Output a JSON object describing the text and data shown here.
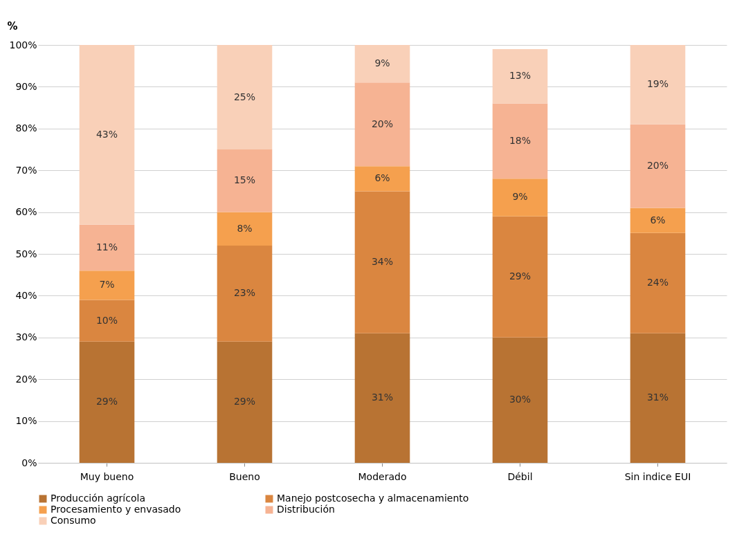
{
  "chart_data": {
    "type": "bar",
    "stacked": true,
    "ylabel": "%",
    "categories": [
      "Muy bueno",
      "Bueno",
      "Moderado",
      "Débil",
      "Sin indice EUI"
    ],
    "series": [
      {
        "name": "Producción agrícola",
        "color": "#b87333",
        "values": [
          29,
          29,
          31,
          30,
          31
        ],
        "value_labels": [
          "29%",
          "29%",
          "31%",
          "30%",
          "31%"
        ]
      },
      {
        "name": "Manejo postcosecha y almacenamiento",
        "color": "#da8640",
        "values": [
          10,
          23,
          34,
          29,
          24
        ],
        "value_labels": [
          "10%",
          "23%",
          "34%",
          "29%",
          "24%"
        ]
      },
      {
        "name": "Procesamiento y envasado",
        "color": "#f5a04e",
        "values": [
          7,
          8,
          6,
          9,
          6
        ],
        "value_labels": [
          "7%",
          "8%",
          "6%",
          "9%",
          "6%"
        ]
      },
      {
        "name": "Distribución",
        "color": "#f6b393",
        "values": [
          11,
          15,
          20,
          18,
          20
        ],
        "value_labels": [
          "11%",
          "15%",
          "20%",
          "18%",
          "20%"
        ]
      },
      {
        "name": "Consumo",
        "color": "#f9d0b8",
        "values": [
          43,
          25,
          9,
          13,
          19
        ],
        "value_labels": [
          "43%",
          "25%",
          "9%",
          "13%",
          "19%"
        ]
      }
    ],
    "ylim": [
      0,
      100
    ],
    "yticks": [
      {
        "value": 0,
        "label": "0%"
      },
      {
        "value": 10,
        "label": "10%"
      },
      {
        "value": 20,
        "label": "20%"
      },
      {
        "value": 30,
        "label": "30%"
      },
      {
        "value": 40,
        "label": "40%"
      },
      {
        "value": 50,
        "label": "50%"
      },
      {
        "value": 60,
        "label": "60%"
      },
      {
        "value": 70,
        "label": "70%"
      },
      {
        "value": 80,
        "label": "80%"
      },
      {
        "value": 90,
        "label": "90%"
      },
      {
        "value": 100,
        "label": "100%"
      }
    ],
    "grid": "y",
    "legend": "bottom"
  }
}
